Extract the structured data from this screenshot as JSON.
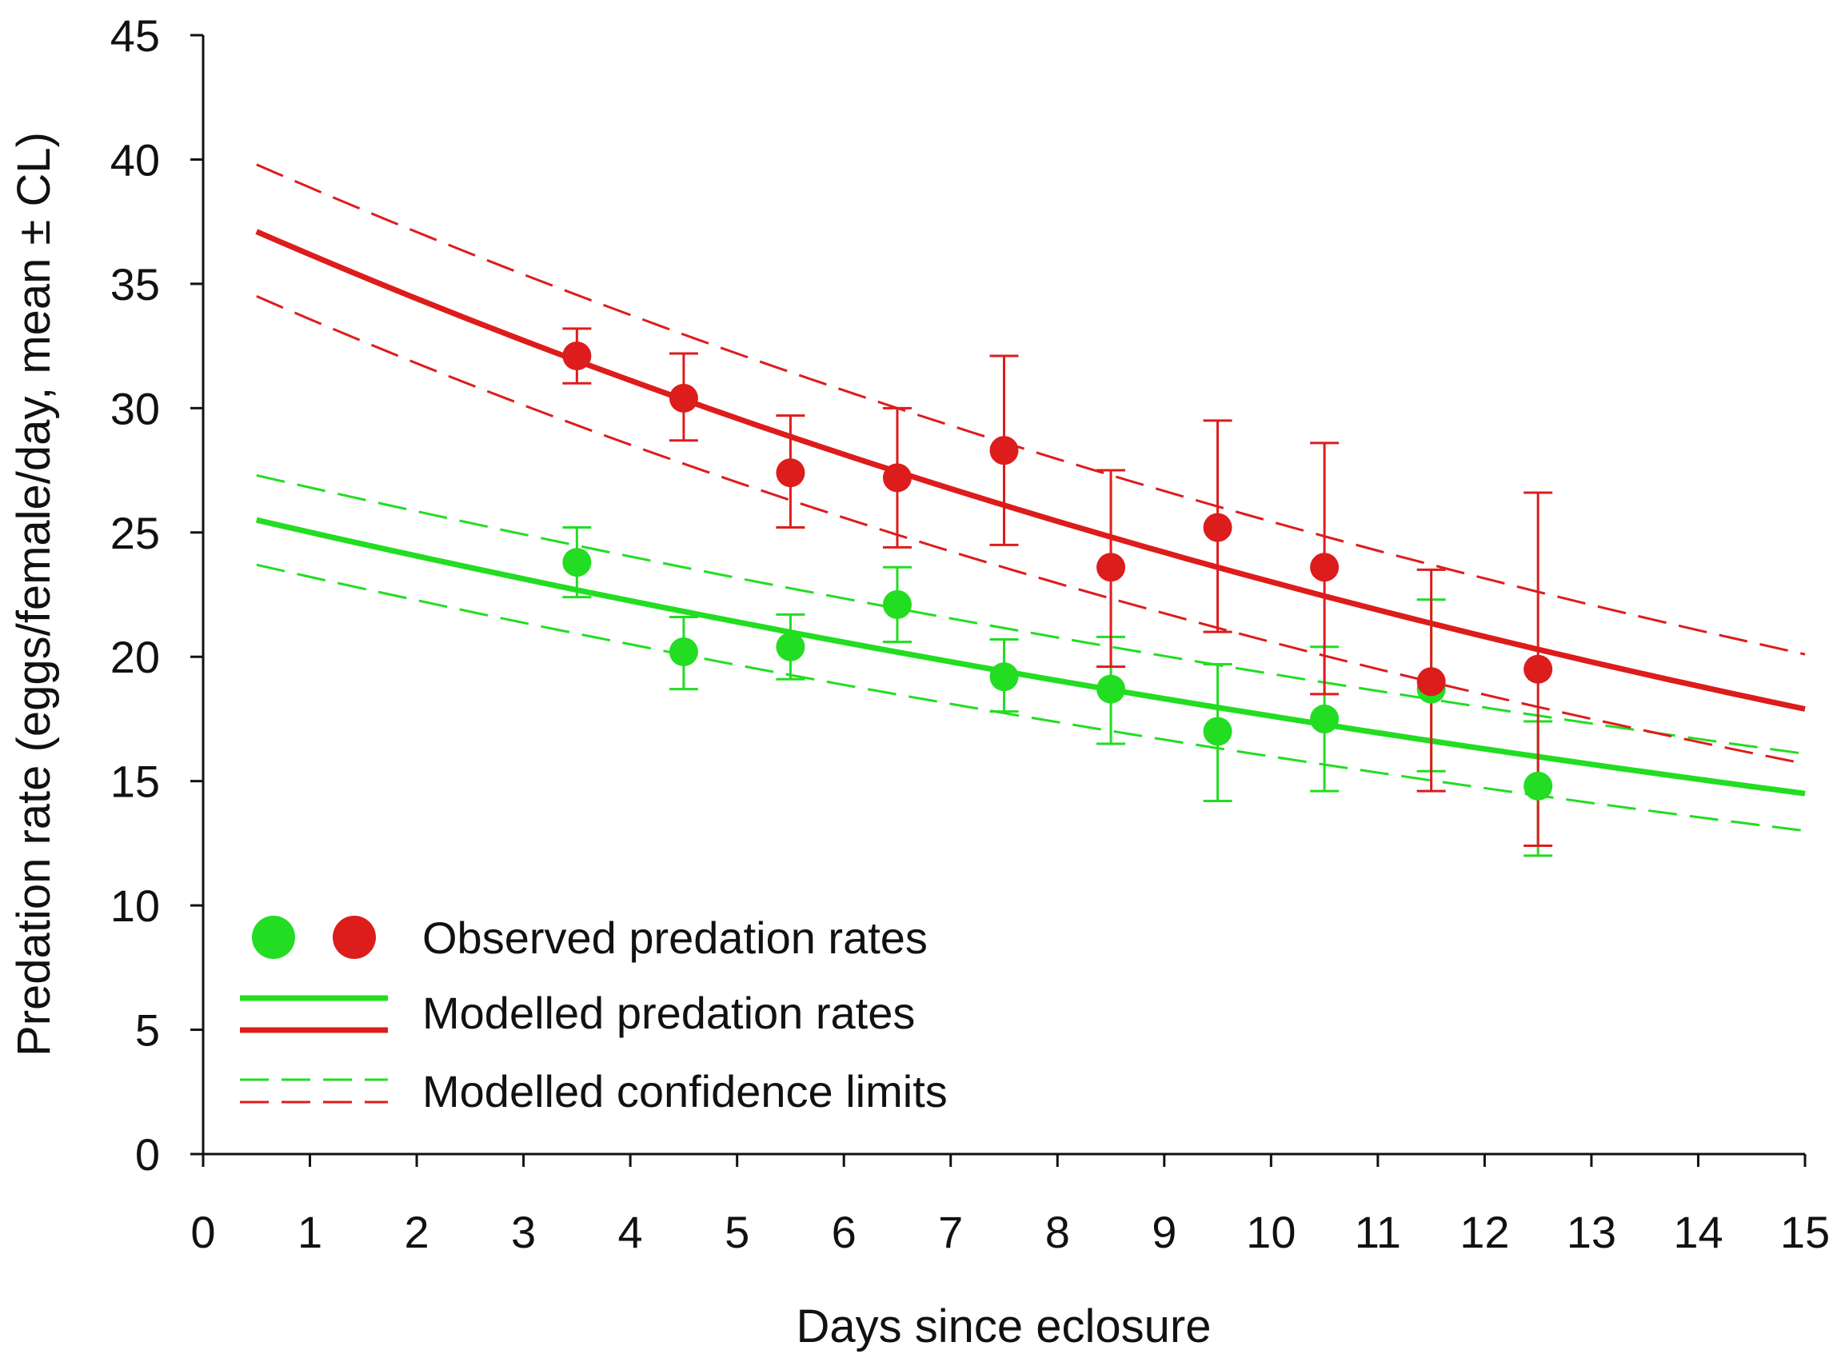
{
  "chart_data": {
    "type": "scatter",
    "title": "",
    "xlabel": "Days since eclosure",
    "ylabel": "Predation rate (eggs/female/day, mean ± CL)",
    "xlim": [
      0,
      15
    ],
    "ylim": [
      0,
      45
    ],
    "xticks": [
      0,
      1,
      2,
      3,
      4,
      5,
      6,
      7,
      8,
      9,
      10,
      11,
      12,
      13,
      14,
      15
    ],
    "yticks": [
      0,
      5,
      10,
      15,
      20,
      25,
      30,
      35,
      40,
      45
    ],
    "grid": false,
    "legend_position": "bottom-left",
    "legend": {
      "observed": "Observed predation rates",
      "modelled": "Modelled predation rates",
      "confidence": "Modelled confidence limits"
    },
    "series": [
      {
        "name": "green",
        "color": "#22dd22",
        "observed": {
          "x": [
            3.5,
            4.5,
            5.5,
            6.5,
            7.5,
            8.5,
            9.5,
            10.5,
            11.5,
            12.5
          ],
          "y": [
            23.8,
            20.2,
            20.4,
            22.1,
            19.2,
            18.7,
            17.0,
            17.5,
            18.7,
            14.8
          ],
          "lower": [
            22.4,
            18.7,
            19.1,
            20.6,
            17.8,
            16.5,
            14.2,
            14.6,
            15.4,
            12.0
          ],
          "upper": [
            25.2,
            21.6,
            21.7,
            23.6,
            20.7,
            20.8,
            19.7,
            20.4,
            22.3,
            17.4
          ]
        },
        "model": {
          "x0": 0.5,
          "x1": 15,
          "y0": 25.5,
          "y1": 14.5
        },
        "ci_upper": {
          "x0": 0.5,
          "x1": 15,
          "y0": 27.3,
          "y1": 16.1
        },
        "ci_lower": {
          "x0": 0.5,
          "x1": 15,
          "y0": 23.7,
          "y1": 13.0
        }
      },
      {
        "name": "red",
        "color": "#dd1c1c",
        "observed": {
          "x": [
            3.5,
            4.5,
            5.5,
            6.5,
            7.5,
            8.5,
            9.5,
            10.5,
            11.5,
            12.5
          ],
          "y": [
            32.1,
            30.4,
            27.4,
            27.2,
            28.3,
            23.6,
            25.2,
            23.6,
            19.0,
            19.5
          ],
          "lower": [
            31.0,
            28.7,
            25.2,
            24.4,
            24.5,
            19.6,
            21.0,
            18.5,
            14.6,
            12.4
          ],
          "upper": [
            33.2,
            32.2,
            29.7,
            30.0,
            32.1,
            27.5,
            29.5,
            28.6,
            23.5,
            26.6
          ]
        },
        "model": {
          "x0": 0.5,
          "x1": 15,
          "y0": 37.1,
          "y1": 17.9
        },
        "ci_upper": {
          "x0": 0.5,
          "x1": 15,
          "y0": 39.8,
          "y1": 20.1
        },
        "ci_lower": {
          "x0": 0.5,
          "x1": 15,
          "y0": 34.5,
          "y1": 15.7
        }
      }
    ]
  }
}
